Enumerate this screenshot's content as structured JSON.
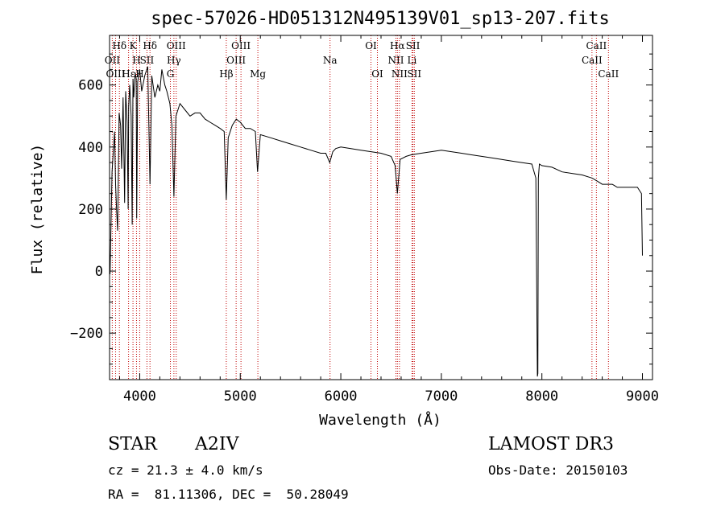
{
  "chart_data": {
    "type": "line",
    "title": "spec-57026-HD051312N495139V01_sp13-207.fits",
    "xlabel": "Wavelength (Å)",
    "ylabel": "Flux (relative)",
    "xlim": [
      3700,
      9100
    ],
    "ylim": [
      -350,
      760
    ],
    "xticks": [
      4000,
      5000,
      6000,
      7000,
      8000,
      9000
    ],
    "yticks": [
      -200,
      0,
      200,
      400,
      600
    ],
    "series": [
      {
        "name": "spectrum",
        "color": "#000000",
        "x": [
          3700,
          3705,
          3725,
          3750,
          3760,
          3770,
          3780,
          3795,
          3810,
          3820,
          3835,
          3850,
          3860,
          3875,
          3885,
          3890,
          3900,
          3915,
          3925,
          3933,
          3940,
          3955,
          3965,
          3970,
          3980,
          4000,
          4020,
          4050,
          4080,
          4102,
          4120,
          4150,
          4180,
          4200,
          4220,
          4250,
          4270,
          4300,
          4320,
          4340,
          4360,
          4380,
          4400,
          4450,
          4500,
          4550,
          4600,
          4650,
          4700,
          4750,
          4800,
          4840,
          4861,
          4880,
          4920,
          4960,
          5000,
          5050,
          5100,
          5150,
          5172,
          5200,
          5300,
          5400,
          5500,
          5600,
          5700,
          5800,
          5850,
          5890,
          5920,
          5950,
          6000,
          6100,
          6200,
          6300,
          6400,
          6500,
          6540,
          6563,
          6590,
          6650,
          6700,
          6800,
          6900,
          7000,
          7100,
          7200,
          7300,
          7400,
          7500,
          7600,
          7700,
          7800,
          7900,
          7940,
          7955,
          7960,
          7965,
          7975,
          8000,
          8100,
          8200,
          8300,
          8400,
          8500,
          8550,
          8600,
          8650,
          8700,
          8750,
          8800,
          8850,
          8900,
          8950,
          8990,
          9000
        ],
        "y": [
          20,
          -10,
          320,
          450,
          280,
          200,
          130,
          510,
          470,
          330,
          560,
          220,
          580,
          480,
          200,
          530,
          600,
          500,
          150,
          620,
          560,
          640,
          620,
          170,
          610,
          650,
          580,
          630,
          660,
          280,
          630,
          560,
          600,
          580,
          650,
          600,
          580,
          540,
          470,
          240,
          500,
          520,
          540,
          520,
          500,
          510,
          510,
          490,
          480,
          470,
          460,
          450,
          230,
          430,
          470,
          490,
          480,
          460,
          460,
          450,
          320,
          440,
          430,
          420,
          410,
          400,
          390,
          380,
          380,
          350,
          385,
          395,
          400,
          395,
          390,
          385,
          380,
          370,
          340,
          250,
          360,
          370,
          375,
          380,
          385,
          390,
          385,
          380,
          375,
          370,
          365,
          360,
          355,
          350,
          345,
          300,
          -340,
          -330,
          300,
          345,
          340,
          335,
          320,
          315,
          310,
          300,
          290,
          280,
          280,
          280,
          270,
          270,
          270,
          270,
          270,
          250,
          50
        ]
      }
    ],
    "spectral_lines": [
      {
        "label": "Hδ",
        "wavelength": 3798,
        "row": 0
      },
      {
        "label": "K",
        "wavelength": 3933,
        "row": 0
      },
      {
        "label": "Hδ",
        "wavelength": 4102,
        "row": 0
      },
      {
        "label": "OIII",
        "wavelength": 4363,
        "row": 0
      },
      {
        "label": "OIII",
        "wavelength": 5007,
        "row": 0
      },
      {
        "label": "OI",
        "wavelength": 6300,
        "row": 0
      },
      {
        "label": "Hα",
        "wavelength": 6563,
        "row": 0
      },
      {
        "label": "SII",
        "wavelength": 6717,
        "row": 0
      },
      {
        "label": "CaII",
        "wavelength": 8542,
        "row": 0
      },
      {
        "label": "OII",
        "wavelength": 3727,
        "row": 1
      },
      {
        "label": "H",
        "wavelength": 3968,
        "row": 1
      },
      {
        "label": "SII",
        "wavelength": 4072,
        "row": 1
      },
      {
        "label": "Hγ",
        "wavelength": 4340,
        "row": 1
      },
      {
        "label": "OIII",
        "wavelength": 4959,
        "row": 1
      },
      {
        "label": "Na",
        "wavelength": 5893,
        "row": 1
      },
      {
        "label": "NII",
        "wavelength": 6548,
        "row": 1
      },
      {
        "label": "Li",
        "wavelength": 6708,
        "row": 1
      },
      {
        "label": "CaII",
        "wavelength": 8498,
        "row": 1
      },
      {
        "label": "OIII",
        "wavelength": 3760,
        "row": 2
      },
      {
        "label": "Hε",
        "wavelength": 3889,
        "row": 2
      },
      {
        "label": "H",
        "wavelength": 4000,
        "row": 2
      },
      {
        "label": "G",
        "wavelength": 4305,
        "row": 2
      },
      {
        "label": "Hβ",
        "wavelength": 4861,
        "row": 2
      },
      {
        "label": "Mg",
        "wavelength": 5175,
        "row": 2
      },
      {
        "label": "OI",
        "wavelength": 6364,
        "row": 2
      },
      {
        "label": "NII",
        "wavelength": 6583,
        "row": 2
      },
      {
        "label": "SII",
        "wavelength": 6731,
        "row": 2
      },
      {
        "label": "CaII",
        "wavelength": 8662,
        "row": 2
      }
    ],
    "line_marker_color": "#c00000"
  },
  "footer": {
    "object_type": "STAR",
    "subclass": "A2IV",
    "survey": "LAMOST DR3",
    "cz": "cz = 21.3 ± 4.0 km/s",
    "obs_date": "Obs-Date: 20150103",
    "coords": "RA =  81.11306, DEC =  50.28049"
  }
}
